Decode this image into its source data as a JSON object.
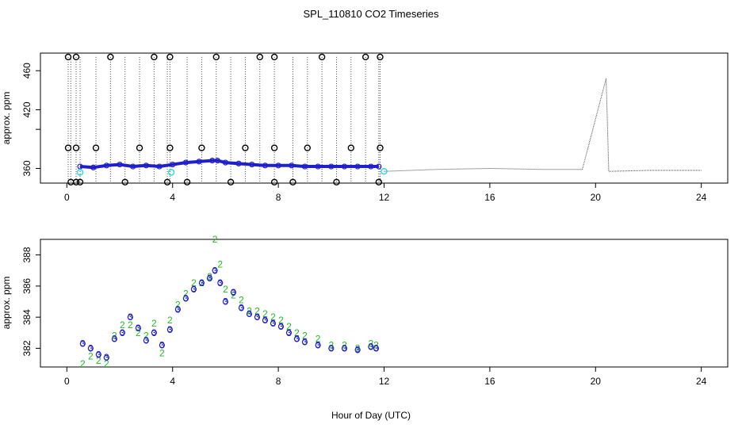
{
  "title": "SPL_110810  CO2 Timeseries",
  "xlabel": "Hour of Day (UTC)",
  "colors": {
    "black": "#000000",
    "blue": "#1f1fcc",
    "cyan": "#33dddd",
    "green": "#22bb22",
    "dotted": "#444444"
  },
  "chart_data": [
    {
      "type": "scatter",
      "panel": "top",
      "title": "SPL_110810  CO2 Timeseries",
      "xlabel": "",
      "ylabel": "approx. ppm",
      "xlim": [
        -1,
        25
      ],
      "ylim": [
        345,
        478
      ],
      "xticks": [
        0,
        4,
        8,
        12,
        16,
        20,
        24
      ],
      "yticks": [
        360,
        400,
        420,
        460
      ],
      "ytick_labels": [
        "360",
        "",
        "420",
        "460"
      ],
      "blue_series": {
        "name": "blue",
        "x": [
          0.5,
          1.0,
          1.5,
          2.0,
          2.5,
          3.0,
          3.5,
          4.0,
          4.5,
          5.0,
          5.5,
          5.7,
          6.0,
          6.5,
          7.0,
          7.5,
          8.0,
          8.5,
          9.0,
          9.5,
          10.0,
          10.5,
          11.0,
          11.5,
          11.8
        ],
        "values": [
          362,
          361,
          363,
          364,
          362,
          363,
          362,
          364,
          366,
          367,
          368,
          368,
          366,
          365,
          364,
          363,
          363,
          363,
          362,
          362,
          362,
          362,
          362,
          362,
          362
        ]
      },
      "cyan_series": {
        "name": "cyan",
        "x": [
          0.5,
          3.95,
          12.0
        ],
        "values": [
          356,
          356,
          357
        ]
      },
      "black_circles": {
        "name": "black",
        "x": [
          0.05,
          0.05,
          0.15,
          0.35,
          0.35,
          0.35,
          0.5,
          1.1,
          1.65,
          2.2,
          2.75,
          3.3,
          3.8,
          3.9,
          3.9,
          4.55,
          5.1,
          5.65,
          6.2,
          6.75,
          7.3,
          7.85,
          7.85,
          7.85,
          8.55,
          9.1,
          9.65,
          10.2,
          10.75,
          11.3,
          11.8,
          11.85,
          11.85
        ],
        "values": [
          474,
          381,
          346,
          474,
          381,
          346,
          346,
          381,
          474,
          346,
          381,
          474,
          346,
          474,
          381,
          346,
          381,
          474,
          346,
          381,
          474,
          474,
          381,
          346,
          346,
          381,
          474,
          346,
          381,
          474,
          346,
          474,
          381
        ]
      },
      "dotted_line": {
        "name": "continuation",
        "x": [
          12,
          14,
          16,
          18,
          19.5,
          20.4,
          20.5,
          22,
          24
        ],
        "values": [
          357,
          359,
          360,
          359,
          359,
          452,
          357,
          358,
          358
        ]
      }
    },
    {
      "type": "scatter",
      "panel": "bottom",
      "xlabel": "Hour of Day (UTC)",
      "ylabel": "approx. ppm",
      "xlim": [
        -1,
        25
      ],
      "ylim": [
        380.8,
        389
      ],
      "xticks": [
        0,
        4,
        8,
        12,
        16,
        20,
        24
      ],
      "yticks": [
        382,
        384,
        386,
        388
      ],
      "series": [
        {
          "name": "3",
          "marker": "3",
          "x": [
            0.6,
            0.9,
            1.2,
            1.5,
            1.8,
            2.1,
            2.4,
            2.7,
            3.0,
            3.3,
            3.6,
            3.9,
            4.2,
            4.5,
            4.8,
            5.1,
            5.4,
            5.6,
            5.8,
            6.0,
            6.3,
            6.6,
            6.9,
            7.2,
            7.5,
            7.8,
            8.1,
            8.4,
            8.7,
            9.0,
            9.5,
            10.0,
            10.5,
            11.0,
            11.5,
            11.7
          ],
          "values": [
            382.3,
            382.0,
            381.6,
            381.4,
            382.6,
            383.0,
            384.0,
            383.3,
            382.5,
            383.0,
            382.2,
            383.2,
            384.5,
            385.2,
            385.8,
            386.2,
            386.5,
            387.0,
            386.2,
            385.0,
            385.6,
            384.6,
            384.2,
            384.0,
            383.8,
            383.6,
            383.4,
            383.0,
            382.6,
            382.4,
            382.2,
            382.0,
            382.0,
            381.9,
            382.1,
            382.0
          ]
        },
        {
          "name": "2",
          "marker": "2",
          "x": [
            0.6,
            0.9,
            1.2,
            1.5,
            1.8,
            2.1,
            2.4,
            2.7,
            3.0,
            3.3,
            3.6,
            3.9,
            4.2,
            4.5,
            4.8,
            5.1,
            5.4,
            5.6,
            5.8,
            6.0,
            6.3,
            6.6,
            6.9,
            7.2,
            7.5,
            7.8,
            8.1,
            8.4,
            8.7,
            9.0,
            9.5,
            10.0,
            10.5,
            11.0,
            11.5,
            11.7
          ],
          "values": [
            381.0,
            381.5,
            381.2,
            381.0,
            382.8,
            383.5,
            383.5,
            383.0,
            382.8,
            383.6,
            381.7,
            383.8,
            384.8,
            385.5,
            386.2,
            386.2,
            386.6,
            389.0,
            387.4,
            385.8,
            385.4,
            385.1,
            384.4,
            384.4,
            384.2,
            384.0,
            383.8,
            383.4,
            383.0,
            382.8,
            382.6,
            382.2,
            382.2,
            382.0,
            382.3,
            382.2
          ]
        }
      ]
    }
  ]
}
